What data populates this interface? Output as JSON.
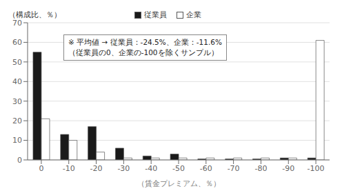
{
  "chart_data": {
    "type": "bar",
    "categories": [
      "0",
      "-10",
      "-20",
      "-30",
      "-40",
      "-50",
      "-60",
      "-70",
      "-80",
      "-90",
      "-100"
    ],
    "series": [
      {
        "name": "従業員",
        "color": "#1a1a1a",
        "values": [
          55,
          13,
          17,
          6,
          2,
          3,
          0.5,
          0.5,
          0.5,
          1,
          1
        ]
      },
      {
        "name": "企業",
        "color": "#ffffff",
        "values": [
          21,
          10,
          4,
          1,
          1,
          1,
          1,
          1,
          1,
          1,
          61
        ]
      }
    ],
    "ylabel": "（構成比、％）",
    "xlabel": "（賃金プレミアム、％）",
    "ylim": [
      0,
      70
    ],
    "yticks": [
      0,
      10,
      20,
      30,
      40,
      50,
      60,
      70
    ],
    "grid": true,
    "legend": "top",
    "annotations": [
      "※ 平均値 → 従業員：-24.5%、企業：-11.6%",
      "（従業員の0、企業の-100を除くサンプル）"
    ]
  }
}
